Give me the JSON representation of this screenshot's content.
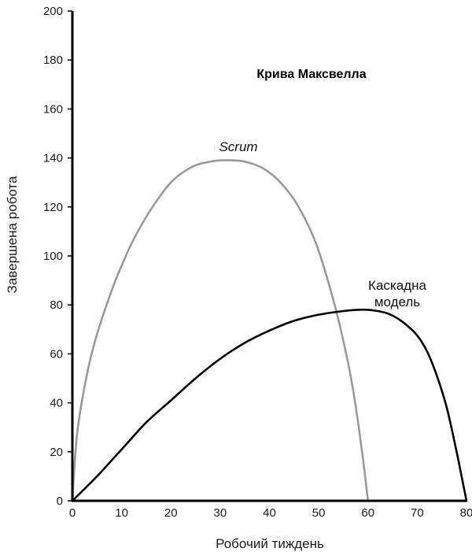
{
  "chart_data": {
    "type": "line",
    "title": "Крива Максвелла",
    "xlabel": "Робочий тиждень",
    "ylabel": "Завершена робота",
    "xlim": [
      0,
      80
    ],
    "ylim": [
      0,
      200
    ],
    "xticks": [
      "0",
      "10",
      "20",
      "30",
      "40",
      "50",
      "60",
      "70",
      "80"
    ],
    "yticks": [
      "0",
      "20",
      "40",
      "60",
      "80",
      "100",
      "120",
      "140",
      "160",
      "180",
      "200"
    ],
    "grid": false,
    "series": [
      {
        "label_lines": [
          "Scrum"
        ],
        "color": "#9a9a9a",
        "x": [
          0,
          1,
          3,
          5,
          8,
          10,
          12,
          15,
          18,
          20,
          22,
          25,
          28,
          30,
          33,
          35,
          38,
          40,
          42,
          45,
          48,
          50,
          52,
          54,
          56,
          57,
          58,
          59,
          60
        ],
        "y": [
          0,
          28,
          52,
          68,
          86,
          96,
          105,
          116,
          125,
          130,
          133.5,
          137,
          138.5,
          139,
          139,
          138.5,
          136.5,
          134,
          130.5,
          123,
          112,
          102,
          89,
          74,
          56,
          45,
          32,
          17,
          0
        ]
      },
      {
        "label_lines": [
          "Каскадна",
          "модель"
        ],
        "color": "#000000",
        "x": [
          0,
          5,
          10,
          15,
          20,
          25,
          30,
          35,
          40,
          45,
          50,
          55,
          58,
          60,
          62,
          64,
          66,
          68,
          70,
          72,
          74,
          76,
          78,
          79,
          80
        ],
        "y": [
          0,
          10,
          21,
          32,
          41,
          50,
          58,
          64.5,
          69.5,
          73.5,
          76,
          77.5,
          78,
          78,
          77.5,
          76.5,
          74.5,
          71.5,
          67.5,
          61,
          51,
          38,
          20,
          10,
          0
        ]
      }
    ]
  }
}
